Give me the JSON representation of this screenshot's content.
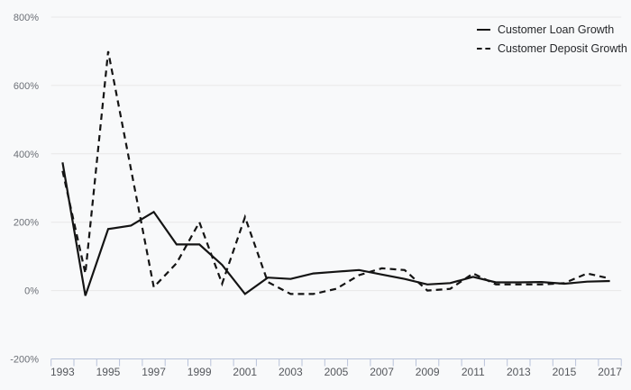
{
  "chart_data": {
    "type": "line",
    "x": [
      1993,
      1994,
      1995,
      1996,
      1997,
      1998,
      1999,
      2000,
      2001,
      2002,
      2003,
      2004,
      2005,
      2006,
      2007,
      2008,
      2009,
      2010,
      2011,
      2012,
      2013,
      2014,
      2015,
      2016,
      2017
    ],
    "series": [
      {
        "name": "Customer Loan Growth",
        "style": "solid",
        "values": [
          375,
          -15,
          180,
          190,
          230,
          135,
          135,
          75,
          -10,
          38,
          34,
          50,
          55,
          60,
          47,
          34,
          18,
          22,
          40,
          24,
          24,
          25,
          20,
          26,
          28
        ]
      },
      {
        "name": "Customer Deposit Growth",
        "style": "dashed",
        "values": [
          350,
          50,
          700,
          355,
          10,
          80,
          200,
          20,
          215,
          25,
          -10,
          -10,
          5,
          45,
          65,
          60,
          0,
          5,
          50,
          18,
          18,
          18,
          22,
          50,
          35
        ]
      }
    ],
    "title": "",
    "xlabel": "",
    "ylabel": "",
    "ylim": [
      -200,
      800
    ],
    "ytick_values": [
      800,
      600,
      400,
      200,
      0,
      -200
    ],
    "ytick_labels": [
      "800%",
      "600%",
      "400%",
      "200%",
      "0%",
      "-200%"
    ],
    "xtick_labels": [
      "1993",
      "1995",
      "1997",
      "1999",
      "2001",
      "2003",
      "2005",
      "2007",
      "2009",
      "2011",
      "2013",
      "2015",
      "2017"
    ],
    "grid": "horizontal-only",
    "legend_position": "top-right",
    "colors": {
      "series_line": "#141414",
      "gridline": "#e8e8e8",
      "axis_and_ticks": "#b9c3da",
      "ytick_label": "#6b6f76",
      "xtick_label": "#54575c",
      "background": "#f8f9fa"
    }
  },
  "legend": {
    "items": [
      {
        "label": "Customer Loan Growth"
      },
      {
        "label": "Customer Deposit Growth"
      }
    ]
  }
}
